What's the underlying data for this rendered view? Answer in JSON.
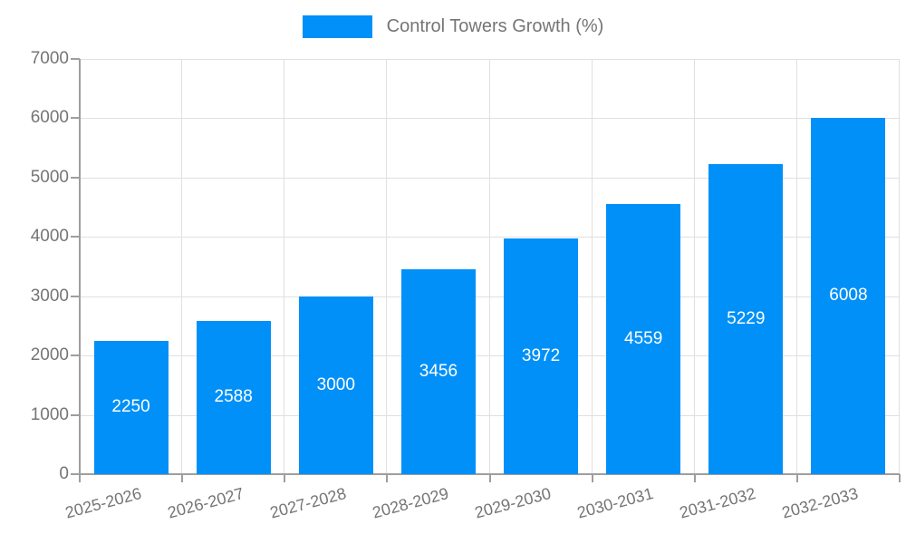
{
  "chart_data": {
    "type": "bar",
    "title": "Control Towers Growth (%)",
    "legend_entries": [
      "Control Towers Growth (%)"
    ],
    "legend_position": "top",
    "categories": [
      "2025-2026",
      "2026-2027",
      "2027-2028",
      "2028-2029",
      "2029-2030",
      "2030-2031",
      "2031-2032",
      "2032-2033"
    ],
    "values": [
      2250,
      2588,
      3000,
      3456,
      3972,
      4559,
      5229,
      6008
    ],
    "value_labels": [
      "2250",
      "2588",
      "3000",
      "3456",
      "3972",
      "4559",
      "5229",
      "6008"
    ],
    "xlabel": "",
    "ylabel": "",
    "ylim": [
      0,
      7000
    ],
    "yticks": [
      0,
      1000,
      2000,
      3000,
      4000,
      5000,
      6000,
      7000
    ],
    "grid": true,
    "colors": {
      "bar": "#0090f8",
      "value_label": "#ffffff",
      "axis_text": "#757575",
      "legend_text": "#757575",
      "gridline": "#e0e0e0",
      "axis_line": "#9e9e9e",
      "background": "#ffffff"
    }
  }
}
